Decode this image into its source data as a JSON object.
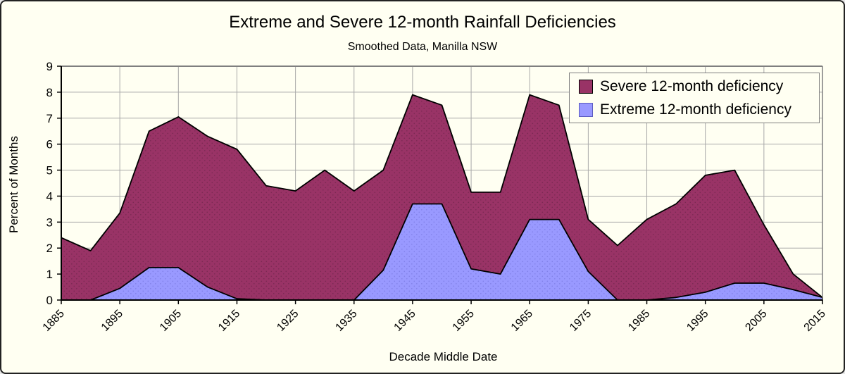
{
  "chart": {
    "title": "Extreme and Severe 12-month Rainfall Deficiencies",
    "subtitle": "Smoothed Data, Manilla NSW",
    "x_axis_title": "Decade Middle Date",
    "y_axis_title": "Percent of Months"
  },
  "colors": {
    "background": "#fffff2",
    "grid": "#a8a8a8",
    "frame": "#7f7f7f",
    "axis": "#000000"
  },
  "chart_data": {
    "type": "area",
    "title": "Extreme and Severe 12-month Rainfall Deficiencies",
    "subtitle": "Smoothed Data, Manilla NSW",
    "xlabel": "Decade Middle Date",
    "ylabel": "Percent of Months",
    "grid": true,
    "legend_position": "top-right",
    "xlim": [
      1885,
      2015
    ],
    "ylim": [
      0,
      9
    ],
    "x_tick_step": 10,
    "y_tick_step": 1,
    "x_tick_labels": [
      "1885",
      "1895",
      "1905",
      "1915",
      "1925",
      "1935",
      "1945",
      "1955",
      "1965",
      "1975",
      "1985",
      "1995",
      "2005",
      "2015"
    ],
    "y_tick_labels": [
      "0",
      "1",
      "2",
      "3",
      "4",
      "5",
      "6",
      "7",
      "8",
      "9"
    ],
    "x": [
      1885,
      1890,
      1895,
      1900,
      1905,
      1910,
      1915,
      1920,
      1925,
      1930,
      1935,
      1940,
      1945,
      1950,
      1955,
      1960,
      1965,
      1970,
      1975,
      1980,
      1985,
      1990,
      1995,
      2000,
      2005,
      2010,
      2015
    ],
    "series": [
      {
        "name": "Severe 12-month deficiency",
        "color": "#993366",
        "dot_color": "#7a2952",
        "outline": "#000000",
        "values": [
          2.4,
          1.9,
          3.35,
          6.5,
          7.05,
          6.3,
          5.8,
          4.4,
          4.2,
          5.0,
          4.2,
          5.0,
          7.9,
          7.5,
          4.15,
          4.15,
          7.9,
          7.5,
          3.1,
          2.1,
          3.1,
          3.7,
          4.8,
          5.0,
          2.9,
          1.0,
          0.1
        ]
      },
      {
        "name": "Extreme 12-month deficiency",
        "color": "#9999ff",
        "dot_color": "#8181e8",
        "outline": "#000000",
        "values": [
          0,
          0,
          0.45,
          1.25,
          1.25,
          0.5,
          0.05,
          0,
          0,
          0,
          0,
          1.15,
          3.7,
          3.7,
          1.2,
          1.0,
          3.1,
          3.1,
          1.1,
          0,
          0,
          0.1,
          0.3,
          0.65,
          0.65,
          0.4,
          0.1
        ]
      }
    ]
  }
}
